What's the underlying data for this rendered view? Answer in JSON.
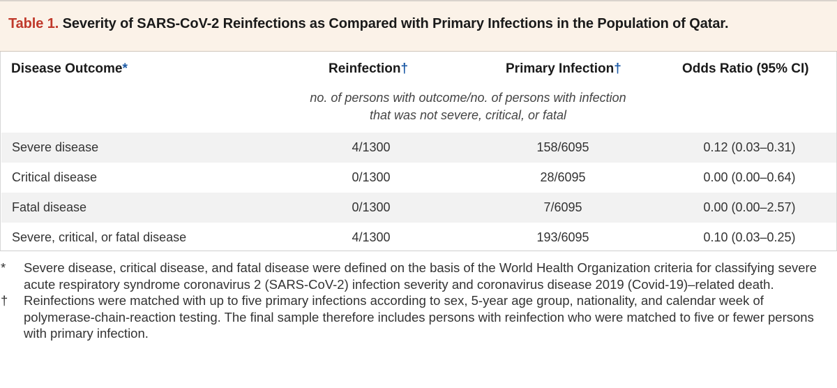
{
  "title": {
    "label": "Table 1.",
    "text": "Severity of SARS-CoV-2 Reinfections as Compared with Primary Infections in the Population of Qatar."
  },
  "columns": {
    "outcome": "Disease Outcome",
    "outcome_mark": "*",
    "reinfection": "Reinfection",
    "reinfection_mark": "†",
    "primary": "Primary Infection",
    "primary_mark": "†",
    "odds": "Odds Ratio (95% CI)"
  },
  "units": {
    "line1": "no. of persons with outcome/no. of persons with infection",
    "line2": "that was not severe, critical, or fatal"
  },
  "rows": [
    {
      "outcome": "Severe disease",
      "reinfection": "4/1300",
      "primary": "158/6095",
      "odds": "0.12 (0.03–0.31)"
    },
    {
      "outcome": "Critical disease",
      "reinfection": "0/1300",
      "primary": "28/6095",
      "odds": "0.00 (0.00–0.64)"
    },
    {
      "outcome": "Fatal disease",
      "reinfection": "0/1300",
      "primary": "7/6095",
      "odds": "0.00 (0.00–2.57)"
    },
    {
      "outcome": "Severe, critical, or fatal disease",
      "reinfection": "4/1300",
      "primary": "193/6095",
      "odds": "0.10 (0.03–0.25)"
    }
  ],
  "footnotes": [
    {
      "mark": "*",
      "text": "Severe disease, critical disease, and fatal disease were defined on the basis of the World Health Organization criteria for classifying severe acute respiratory syndrome coronavirus 2 (SARS-CoV-2) infection severity and coronavirus disease 2019 (Covid-19)–related death."
    },
    {
      "mark": "†",
      "text": "Reinfections were matched with up to five primary infections according to sex, 5-year age group, nationality, and calendar week of polymerase-chain-reaction testing. The final sample therefore includes persons with reinfection who were matched to five or fewer persons with primary infection."
    }
  ],
  "colors": {
    "title_label": "#c0392b",
    "dagger": "#1c5aa6",
    "title_bg": "#fbf2e8",
    "row_shade": "#f2f2f2"
  }
}
